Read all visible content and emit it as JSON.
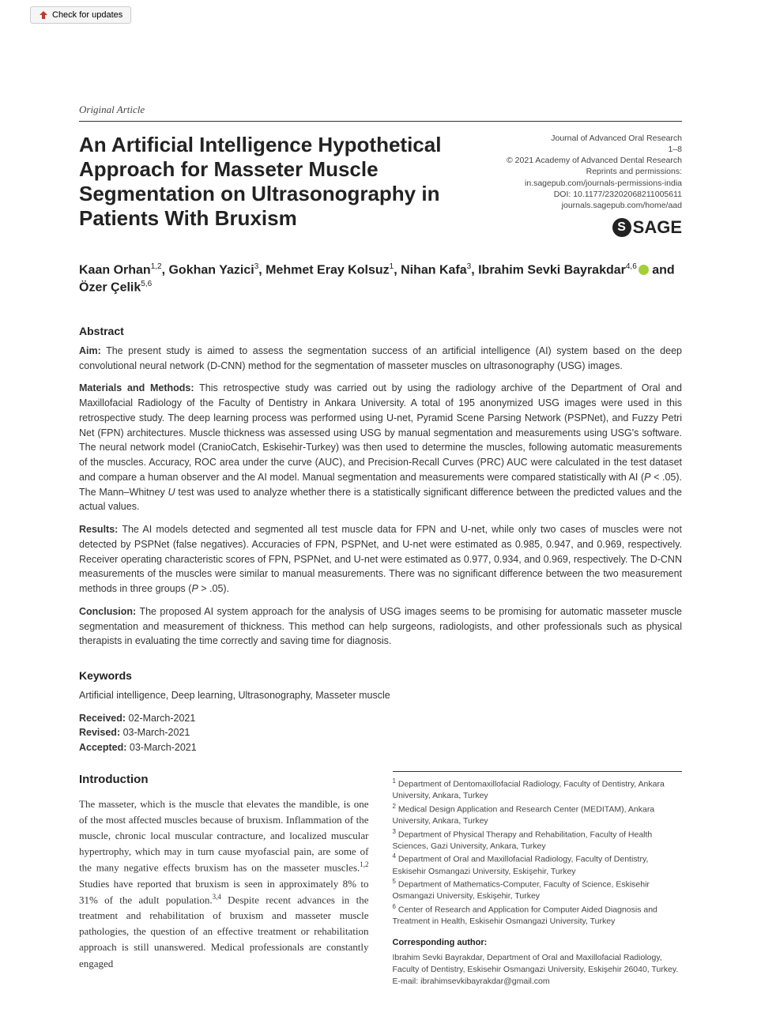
{
  "updates_button": "Check for updates",
  "article_type": "Original Article",
  "title": "An Artificial Intelligence Hypothetical Approach for Masseter Muscle Segmentation on Ultrasonography in Patients With Bruxism",
  "journal_meta": {
    "journal": "Journal of Advanced Oral Research",
    "pages": "1–8",
    "copyright": "© 2021 Academy of Advanced Dental Research",
    "reprints": "Reprints and permissions:",
    "reprints_url": "in.sagepub.com/journals-permissions-india",
    "doi": "DOI: 10.1177/23202068211005611",
    "home_url": "journals.sagepub.com/home/aad",
    "publisher": "SAGE"
  },
  "authors_html": "Kaan Orhan<sup>1,2</sup>, Gokhan Yazici<sup>3</sup>, Mehmet Eray Kolsuz<sup>1</sup>, Nihan Kafa<sup>3</sup>, Ibrahim Sevki Bayrakdar<sup>4,6</sup><span class=\"orcid\"></span> and Özer Çelik<sup>5,6</sup>",
  "abstract_heading": "Abstract",
  "abstract": {
    "aim": "<b>Aim:</b> The present study is aimed to assess the segmentation success of an artificial intelligence (AI) system based on the deep convolutional neural network (D-CNN) method for the segmentation of masseter muscles on ultrasonography (USG) images.",
    "methods": "<b>Materials and Methods:</b> This retrospective study was carried out by using the radiology archive of the Department of Oral and Maxillofacial Radiology of the Faculty of Dentistry in Ankara University. A total of 195 anonymized USG images were used in this retrospective study. The deep learning process was performed using U-net, Pyramid Scene Parsing Network (PSPNet), and Fuzzy Petri Net (FPN) architectures. Muscle thickness was assessed using USG by manual segmentation and measurements using USG's software. The neural network model (CranioCatch, Eskisehir-Turkey) was then used to determine the muscles, following automatic measurements of the muscles. Accuracy, ROC area under the curve (AUC), and Precision-Recall Curves (PRC) AUC were calculated in the test dataset and compare a human observer and the AI model. Manual segmentation and measurements were compared statistically with AI (<i>P</i> < .05). The Mann–Whitney <i>U</i> test was used to analyze whether there is a statistically significant difference between the predicted values and the actual values.",
    "results": "<b>Results:</b> The AI models detected and segmented all test muscle data for FPN and U-net, while only two cases of muscles were not detected by PSPNet (false negatives). Accuracies of FPN, PSPNet, and U-net were estimated as 0.985, 0.947, and 0.969, respectively. Receiver operating characteristic scores of FPN, PSPNet, and U-net were estimated as 0.977, 0.934, and 0.969, respectively. The D-CNN measurements of the muscles were similar to manual measurements. There was no significant difference between the two measurement methods in three groups (<i>P</i> > .05).",
    "conclusion": "<b>Conclusion:</b> The proposed AI system approach for the analysis of USG images seems to be promising for automatic masseter muscle segmentation and measurement of thickness. This method can help surgeons, radiologists, and other professionals such as physical therapists in evaluating the time correctly and saving time for diagnosis."
  },
  "keywords_heading": "Keywords",
  "keywords": "Artificial intelligence, Deep learning, Ultrasonography, Masseter muscle",
  "dates": {
    "received_label": "Received:",
    "received": "02-March-2021",
    "revised_label": "Revised:",
    "revised": "03-March-2021",
    "accepted_label": "Accepted:",
    "accepted": "03-March-2021"
  },
  "intro_heading": "Introduction",
  "intro_text": "The masseter, which is the muscle that elevates the mandible, is one of the most affected muscles because of bruxism. Inflammation of the muscle, chronic local muscular contracture, and localized muscular hypertrophy, which may in turn cause myofascial pain, are some of the many negative effects bruxism has on the masseter muscles.<sup>1,2</sup> Studies have reported that bruxism is seen in approximately 8% to 31% of the adult population.<sup>3,4</sup> Despite recent advances in the treatment and rehabilitation of bruxism and masseter muscle pathologies, the question of an effective treatment or rehabilitation approach is still unanswered. Medical professionals are constantly engaged",
  "affiliations": [
    "<sup>1</sup> Department of Dentomaxillofacial Radiology, Faculty of Dentistry, Ankara University, Ankara, Turkey",
    "<sup>2</sup> Medical Design Application and Research Center (MEDITAM), Ankara University, Ankara, Turkey",
    "<sup>3</sup> Department of Physical Therapy and Rehabilitation, Faculty of Health Sciences, Gazi University, Ankara, Turkey",
    "<sup>4</sup> Department of Oral and Maxillofacial Radiology, Faculty of Dentistry, Eskisehir Osmangazi University, Eskişehir, Turkey",
    "<sup>5</sup> Department of Mathematics-Computer, Faculty of Science, Eskisehir Osmangazi University, Eskişehir, Turkey",
    "<sup>6</sup> Center of Research and Application for Computer Aided Diagnosis and Treatment in Health, Eskisehir Osmangazi University, Turkey"
  ],
  "corresponding_heading": "Corresponding author:",
  "corresponding": "Ibrahim Sevki Bayrakdar, Department of Oral and Maxillofacial Radiology, Faculty of Dentistry, Eskisehir Osmangazi University, Eskişehir 26040, Turkey.",
  "email_label": "E-mail:",
  "email": "ibrahimsevkibayrakdar@gmail.com"
}
